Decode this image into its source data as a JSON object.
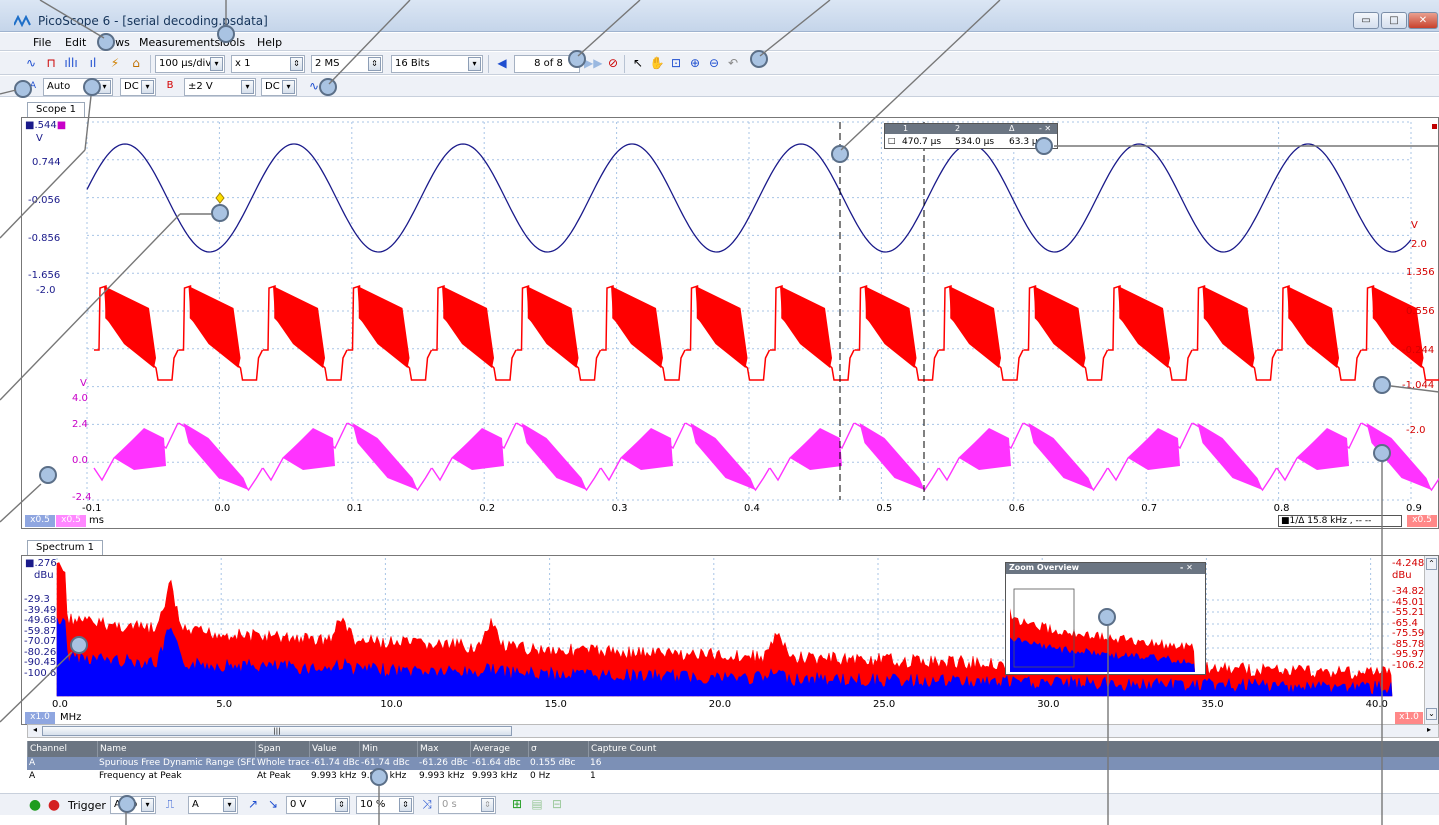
{
  "window": {
    "title": "PicoScope 6 - [serial decoding.psdata]",
    "min_label": "▭",
    "max_label": "□",
    "close_label": "✕"
  },
  "menu": [
    "File",
    "Edit",
    "Views",
    "Measurements",
    "Tools",
    "Help"
  ],
  "toolbar1": {
    "timebase": "100 µs/div",
    "zoom": "x 1",
    "samples": "2 MS",
    "resolution": "16 Bits",
    "buffer": "8 of 8"
  },
  "toolbar2": {
    "chA_range": "Auto",
    "chA_coupling": "DC",
    "chB_label": "B",
    "chB_range": "±2 V",
    "chB_coupling": "DC"
  },
  "scope": {
    "tab": "Scope 1",
    "scale_top": ".544",
    "unit_left": "V",
    "left_ticks_blue": [
      "0.744",
      "-0.056",
      "-0.856",
      "-1.656"
    ],
    "left_blue_2": "-2.0",
    "unit_v_mag": "V",
    "left_ticks_mag": [
      "4.0",
      "2.4",
      "0.0",
      "-2.4"
    ],
    "right_unit": "V",
    "right_ticks_red": [
      "2.0",
      "1.356",
      "0.556",
      "-0.244",
      "-1.044",
      "-2.0"
    ],
    "x_ticks": [
      "-0.1",
      "0.0",
      "0.1",
      "0.2",
      "0.3",
      "0.4",
      "0.5",
      "0.6",
      "0.7",
      "0.8",
      "0.9"
    ],
    "x_unit": "ms",
    "zoom_a": "x0.5",
    "zoom_b": "x0.5",
    "zoom_right": "x0.5",
    "freq_readout": "15.8 kHz , -- --"
  },
  "rulers": {
    "h1": "1",
    "h2": "2",
    "h3": "Δ",
    "v1": "470.7 µs",
    "v2": "534.0 µs",
    "v3": "63.3 µs"
  },
  "spectrum": {
    "tab": "Spectrum 1",
    "scale_top": ".276",
    "unit_left": "dBu",
    "left_ticks": [
      "-29.3",
      "-39.49",
      "-49.68",
      "-59.87",
      "-70.07",
      "-80.26",
      "-90.45",
      "-100.6"
    ],
    "right_top": "-4.248",
    "right_unit": "dBu",
    "right_ticks": [
      "-34.82",
      "-45.01",
      "-55.21",
      "-65.4",
      "-75.59",
      "-85.78",
      "-95.97",
      "-106.2"
    ],
    "x_ticks": [
      "0.0",
      "5.0",
      "10.0",
      "15.0",
      "20.0",
      "25.0",
      "30.0",
      "35.0",
      "40.0"
    ],
    "x_unit": "MHz",
    "zoom_left": "x1.0",
    "zoom_right": "x1.0",
    "zoom_overview_title": "Zoom Overview",
    "scroll_grip": "|||"
  },
  "measurements": {
    "headers": [
      "Channel",
      "Name",
      "Span",
      "Value",
      "Min",
      "Max",
      "Average",
      "σ",
      "Capture Count"
    ],
    "rows": [
      [
        "A",
        "Spurious Free Dynamic Range (SFDR)",
        "Whole trace",
        "-61.74 dBc",
        "-61.74 dBc",
        "-61.26 dBc",
        "-61.64 dBc",
        "0.155 dBc",
        "16"
      ],
      [
        "A",
        "Frequency at Peak",
        "At Peak",
        "9.993 kHz",
        "9.993 kHz",
        "9.993 kHz",
        "9.993 kHz",
        "0 Hz",
        "1"
      ]
    ]
  },
  "bottom": {
    "trigger_label": "Trigger",
    "trigger_mode": "Auto",
    "trigger_source": "A",
    "threshold": "0 V",
    "pretrigger": "10 %",
    "delay": "0 s"
  },
  "colors": {
    "chA": "#1a1a8a",
    "chB": "#ff0000",
    "math": "#ff33ff",
    "spectrum_blue": "#0000ff"
  }
}
